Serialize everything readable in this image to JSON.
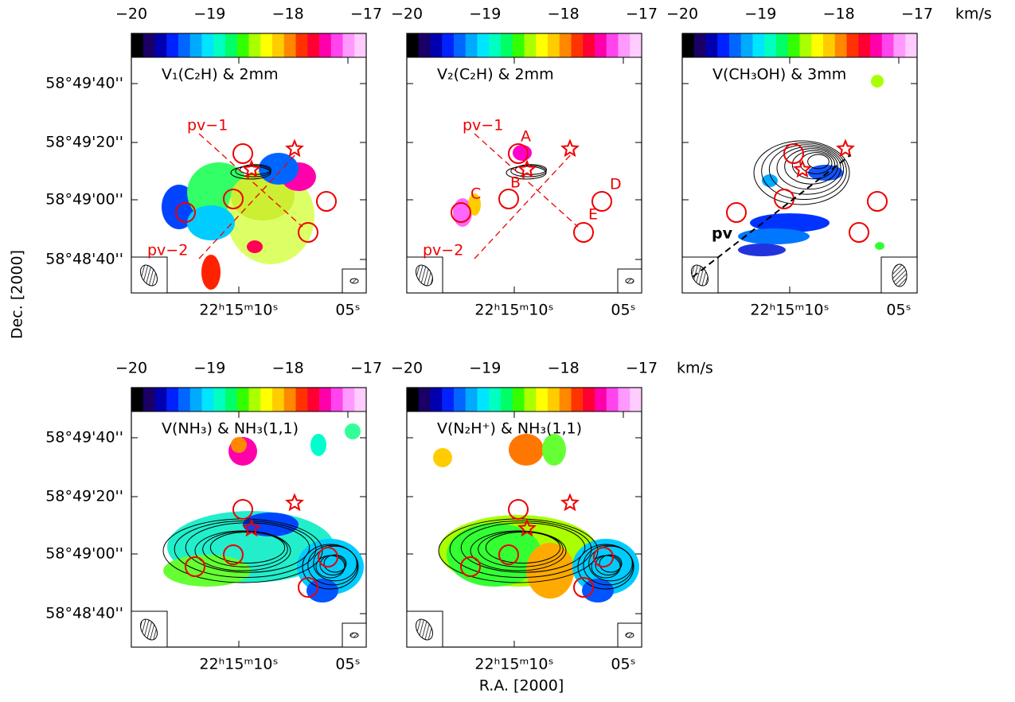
{
  "colorbar": {
    "ticks": [
      "−20",
      "−19",
      "−18",
      "−17"
    ],
    "unit": "km/s"
  },
  "panels": [
    {
      "title": "V₁(C₂H) & 2mm",
      "annotations": [
        "pv−1",
        "pv−2"
      ]
    },
    {
      "title": "V₂(C₂H) & 2mm",
      "annotations": [
        "pv−1",
        "pv−2",
        "A",
        "B",
        "C",
        "D",
        "E"
      ]
    },
    {
      "title": "V(CH₃OH) & 3mm",
      "annotations": [
        "pv"
      ]
    },
    {
      "title": "V(NH₃) & NH₃(1,1)"
    },
    {
      "title": "V(N₂H⁺) & NH₃(1,1)"
    }
  ],
  "y_ticks_top": [
    "58°49'40''",
    "58°49'20''",
    "58°49'00''",
    "58°48'40''"
  ],
  "y_ticks_bottom": [
    "58°49'40''",
    "58°49'20''",
    "58°49'00''",
    "58°48'40''"
  ],
  "x_ticks": [
    "22ʰ15ᵐ10ˢ",
    "05ˢ"
  ],
  "y_axis_label": "Dec. [2000]",
  "x_axis_label": "R.A. [2000]"
}
